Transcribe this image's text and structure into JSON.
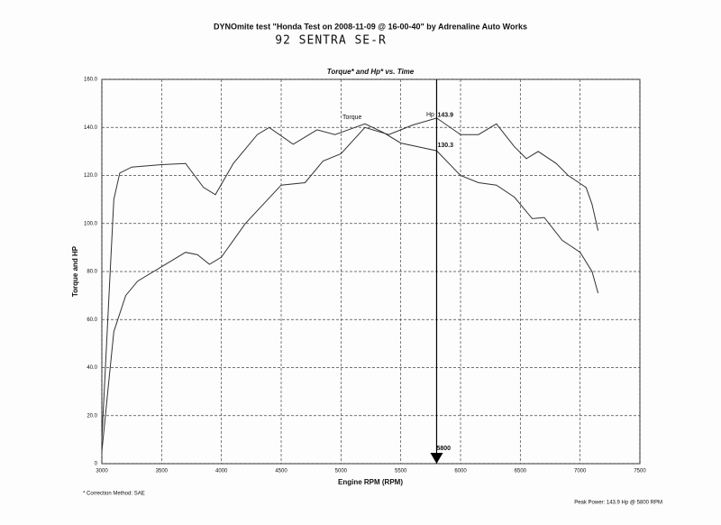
{
  "chart_data": {
    "type": "line",
    "header": "DYNOmite test \"Honda Test on 2008-11-09 @ 16-00-40\" by Adrenaline Auto Works",
    "handwritten_note": "92 SENTRA SE-R",
    "title": "Torque* and Hp* vs. Time",
    "x_label": "Engine RPM (RPM)",
    "y_label": "Torque and HP",
    "footnote": "* Correction Method: SAE",
    "peak_note": "Peak Power: 143.9 Hp @ 5800 RPM",
    "xlim": [
      3000,
      7500
    ],
    "xticks": [
      3000,
      3500,
      4000,
      4500,
      5000,
      5500,
      6000,
      6500,
      7000,
      7500
    ],
    "ylim": [
      0,
      160
    ],
    "yticks": [
      0,
      {
        "value": 20,
        "label": "20.0"
      },
      {
        "value": 40,
        "label": "40.0"
      },
      {
        "value": 60,
        "label": "60.0"
      },
      {
        "value": 80,
        "label": "80.0"
      },
      {
        "value": 100,
        "label": "100.0"
      },
      {
        "value": 120,
        "label": "120.0"
      },
      {
        "value": 140,
        "label": "140.0"
      },
      {
        "value": 160,
        "label": "160.0"
      }
    ],
    "grid": true,
    "series": [
      {
        "name": "Torque",
        "color": "#333333",
        "x": [
          3000,
          3050,
          3100,
          3150,
          3250,
          3500,
          3700,
          3850,
          3950,
          4100,
          4300,
          4400,
          4600,
          4800,
          4950,
          5200,
          5350,
          5500,
          5800,
          6000,
          6150,
          6300,
          6450,
          6600,
          6700,
          6850,
          7000,
          7100,
          7150
        ],
        "values": [
          10,
          60,
          110,
          121,
          123.5,
          124.5,
          125,
          115,
          112,
          125,
          137,
          140,
          133,
          139,
          137,
          141.5,
          138,
          133.5,
          130.3,
          120,
          117,
          116,
          111,
          102,
          102.5,
          93,
          88,
          80,
          71
        ]
      },
      {
        "name": "Hp",
        "color": "#333333",
        "x": [
          3000,
          3050,
          3100,
          3200,
          3300,
          3500,
          3700,
          3800,
          3900,
          4000,
          4200,
          4500,
          4700,
          4850,
          5000,
          5200,
          5400,
          5600,
          5800,
          6000,
          6150,
          6300,
          6450,
          6550,
          6650,
          6800,
          6900,
          7050,
          7100,
          7150
        ],
        "values": [
          5,
          30,
          55,
          70,
          76,
          82,
          88,
          87,
          83,
          86,
          100,
          116,
          117,
          126,
          129,
          140,
          137,
          141,
          143.9,
          137,
          137,
          141.5,
          132,
          127,
          130,
          125,
          120,
          115,
          108,
          97
        ]
      }
    ],
    "cursor": {
      "rpm": 5800,
      "hp": 143.9,
      "torque": 130.3
    }
  }
}
